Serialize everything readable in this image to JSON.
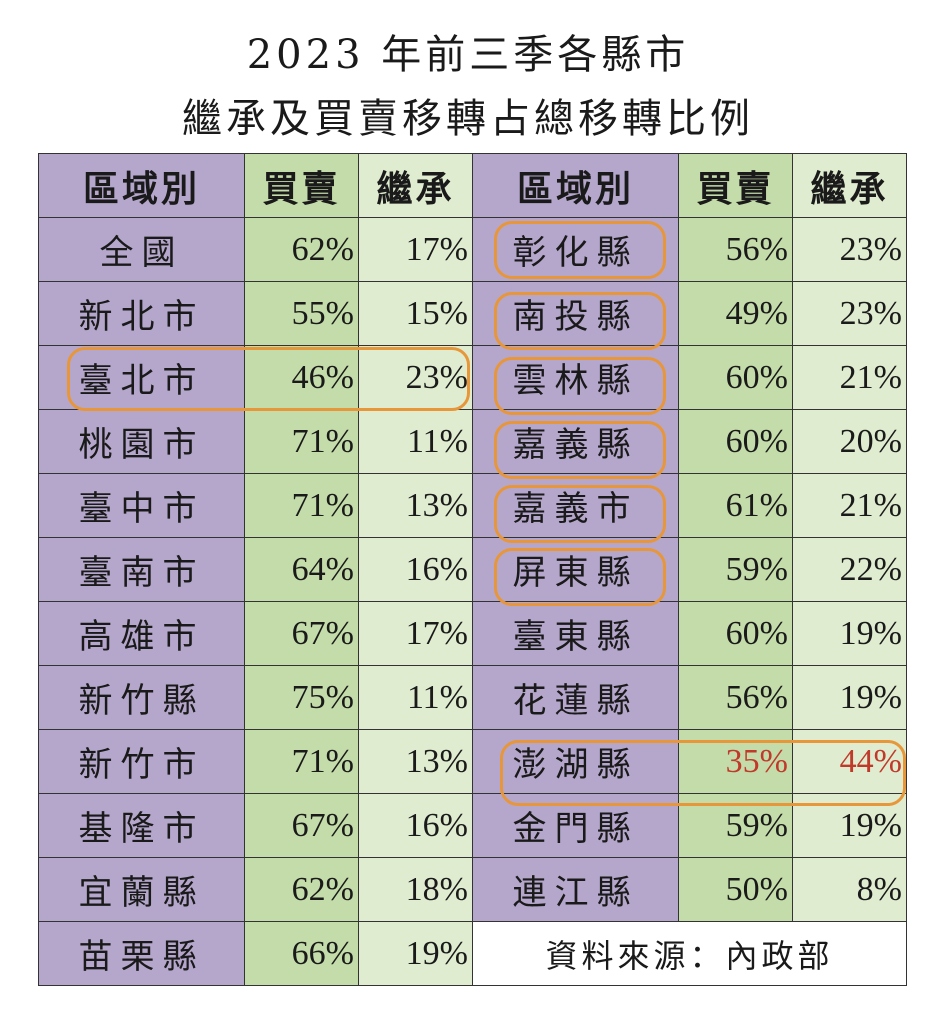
{
  "title": {
    "line1": "2023 年前三季各縣市",
    "line2": "繼承及買賣移轉占總移轉比例"
  },
  "headers": {
    "region": "區域別",
    "sale": "買賣",
    "inherit": "繼承"
  },
  "left_rows": [
    {
      "region": "全國",
      "sale": "62%",
      "inherit": "17%"
    },
    {
      "region": "新北市",
      "sale": "55%",
      "inherit": "15%"
    },
    {
      "region": "臺北市",
      "sale": "46%",
      "inherit": "23%"
    },
    {
      "region": "桃園市",
      "sale": "71%",
      "inherit": "11%"
    },
    {
      "region": "臺中市",
      "sale": "71%",
      "inherit": "13%"
    },
    {
      "region": "臺南市",
      "sale": "64%",
      "inherit": "16%"
    },
    {
      "region": "高雄市",
      "sale": "67%",
      "inherit": "17%"
    },
    {
      "region": "新竹縣",
      "sale": "75%",
      "inherit": "11%"
    },
    {
      "region": "新竹市",
      "sale": "71%",
      "inherit": "13%"
    },
    {
      "region": "基隆市",
      "sale": "67%",
      "inherit": "16%"
    },
    {
      "region": "宜蘭縣",
      "sale": "62%",
      "inherit": "18%"
    },
    {
      "region": "苗栗縣",
      "sale": "66%",
      "inherit": "19%"
    }
  ],
  "right_rows": [
    {
      "region": "彰化縣",
      "sale": "56%",
      "inherit": "23%"
    },
    {
      "region": "南投縣",
      "sale": "49%",
      "inherit": "23%"
    },
    {
      "region": "雲林縣",
      "sale": "60%",
      "inherit": "21%"
    },
    {
      "region": "嘉義縣",
      "sale": "60%",
      "inherit": "20%"
    },
    {
      "region": "嘉義市",
      "sale": "61%",
      "inherit": "21%"
    },
    {
      "region": "屏東縣",
      "sale": "59%",
      "inherit": "22%"
    },
    {
      "region": "臺東縣",
      "sale": "60%",
      "inherit": "19%"
    },
    {
      "region": "花蓮縣",
      "sale": "56%",
      "inherit": "19%"
    },
    {
      "region": "澎湖縣",
      "sale": "35%",
      "inherit": "44%"
    },
    {
      "region": "金門縣",
      "sale": "59%",
      "inherit": "19%"
    },
    {
      "region": "連江縣",
      "sale": "50%",
      "inherit": "8%"
    }
  ],
  "source": "資料來源：內政部",
  "colors": {
    "region_bg": "#b5a7cc",
    "sale_bg": "#c4dcaa",
    "inherit_bg": "#dfeccf",
    "highlight_border": "#e8963a",
    "emphasis_text": "#c0392b"
  }
}
